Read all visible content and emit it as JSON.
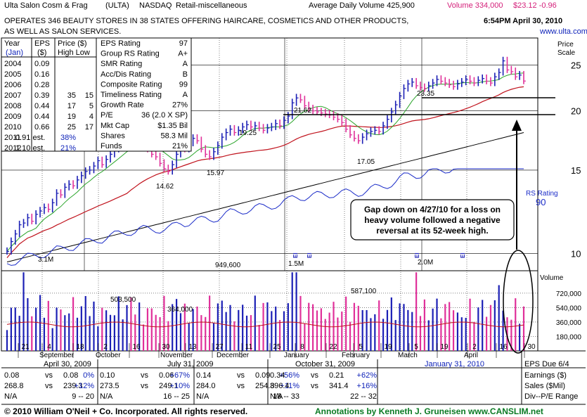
{
  "header": {
    "name": "Ulta Salon Cosm & Frag",
    "symbol": "(ULTA)",
    "exchange": "NASDAQ",
    "industry": "Retail-miscellaneous",
    "avg_volume": "Average Daily Volume 425,900",
    "volume": "Volume 334,000",
    "price": "$23.12 -0.96",
    "description_line1": "OPERATES 346 BEAUTY STORES IN 38 STATES OFFERING HAIRCARE,  COSMETICS AND OTHER PRODUCTS,",
    "description_line2": "AS WELL AS SALON SERVICES.",
    "timestamp": "6:54PM April 30, 2010",
    "url": "www.ulta.com"
  },
  "eps_table": {
    "headers": [
      [
        "Year",
        "(Jan)"
      ],
      [
        "EPS",
        "($)"
      ],
      [
        "Price ($)",
        "High Low"
      ]
    ],
    "rows": [
      {
        "year": "2004",
        "eps": "0.09",
        "high": "",
        "low": ""
      },
      {
        "year": "2005",
        "eps": "0.16",
        "high": "",
        "low": ""
      },
      {
        "year": "2006",
        "eps": "0.28",
        "high": "",
        "low": ""
      },
      {
        "year": "2007",
        "eps": "0.39",
        "high": "35",
        "low": "15"
      },
      {
        "year": "2008",
        "eps": "0.44",
        "high": "17",
        "low": "5"
      },
      {
        "year": "2009",
        "eps": "0.44",
        "high": "19",
        "low": "4"
      },
      {
        "year": "2010",
        "eps": "0.66",
        "high": "25",
        "low": "17"
      },
      {
        "year": "2011",
        "eps": "0.91 est.",
        "high": "38%",
        "low": ""
      },
      {
        "year": "2012",
        "eps": "1.10 est.",
        "high": "21%",
        "low": ""
      }
    ]
  },
  "ratings": [
    {
      "label": "EPS Rating",
      "value": "97"
    },
    {
      "label": "Group RS Rating",
      "value": "A+"
    },
    {
      "label": "SMR Rating",
      "value": "A"
    },
    {
      "label": "Acc/Dis Rating",
      "value": "B"
    },
    {
      "label": "Composite Rating",
      "value": "99"
    },
    {
      "label": "Timeliness Rating",
      "value": "A"
    },
    {
      "label": "Growth Rate",
      "value": "27%"
    },
    {
      "label": "P/E",
      "value": "36 (2.0 X SP)"
    },
    {
      "label": "Mkt Cap",
      "value": "$1.35 Bil"
    },
    {
      "label": "Shares",
      "value": "58.3 Mil"
    },
    {
      "label": "Funds",
      "value": "21%"
    }
  ],
  "annotation": {
    "line1": "Gap down on 4/27/10 for a loss on",
    "line2": "heavy volume followed a negative",
    "line3": "reversal at its 52-week high."
  },
  "rs_label": "RS Rating",
  "rs_value": "90",
  "price_scale_label": [
    "Price",
    "Scale"
  ],
  "volume_label": "Volume",
  "x_axis": {
    "day_ticks": [
      "21",
      "4",
      "18",
      "2",
      "16",
      "30",
      "13",
      "27",
      "11",
      "25",
      "8",
      "22",
      "5",
      "19",
      "5",
      "19",
      "2",
      "16",
      "30"
    ],
    "months": [
      "September",
      "October",
      "November",
      "December",
      "January",
      "February",
      "March",
      "April"
    ]
  },
  "quarters": [
    {
      "date": "April 30, 2009",
      "eps_cur": "0.08",
      "eps_prev": "0.08",
      "eps_chg": "0%",
      "sales_cur": "268.8",
      "sales_prev": "239.3",
      "sales_chg": "+12%",
      "pe_label": "N/A",
      "pe_range": "9 -- 20"
    },
    {
      "date": "July 31, 2009",
      "eps_cur": "0.10",
      "eps_prev": "0.06",
      "eps_chg": "+67%",
      "sales_cur": "273.5",
      "sales_prev": "249.1",
      "sales_chg": "+10%",
      "pe_label": "N/A",
      "pe_range": "16 -- 25"
    },
    {
      "date": "October 31, 2009",
      "eps_cur": "0.14",
      "eps_prev": "0.09",
      "eps_chg": "+56%",
      "sales_cur": "284.0",
      "sales_prev": "254.8",
      "sales_chg": "+11%",
      "pe_label": "N/A",
      "pe_range": "18 -- 33"
    },
    {
      "date": "January 31, 2010",
      "eps_cur": "0.34",
      "eps_prev": "0.21",
      "eps_chg": "+62%",
      "sales_cur": "396.4",
      "sales_prev": "341.4",
      "sales_chg": "+16%",
      "pe_label": "N/A",
      "pe_range": "22 -- 32"
    }
  ],
  "vs_label": "vs",
  "footer_right": {
    "due": "EPS Due 6/4",
    "earnings": "Earnings ($)",
    "sales": "Sales ($Mil)",
    "pe": "Div--P/E Range"
  },
  "footer": {
    "copyright": "© 2010 William O'Neil + Co. Incorporated. All rights reserved.",
    "annotations": "Annotations by Kenneth J. Gruneisen www.CANSLIM.net"
  },
  "colors": {
    "up": "#1b1fb5",
    "down": "#e0309a",
    "ma50": "#2aa52a",
    "ma200": "#c0121c",
    "rs": "#1a2bc8",
    "grid": "#000000",
    "annot_text": "#000000",
    "footer_green": "#0a7a23",
    "blue_text": "#0b1fb8",
    "pink_text": "#d4207a"
  },
  "chart_data": {
    "type": "bar",
    "description_of_type": "ohlc",
    "price_axis": {
      "ticks": [
        10,
        15,
        20,
        25
      ],
      "log_scale": true,
      "ylim": [
        9.2,
        28.5
      ]
    },
    "volume_axis": {
      "ticks": [
        "180000",
        "360000",
        "540000",
        "720000"
      ],
      "ylim": [
        0,
        1000000
      ]
    },
    "price_annotations": [
      "21.62",
      "19.25",
      "23.35",
      "17.05",
      "15.97",
      "14.62"
    ],
    "volume_annotations": [
      "3.1M",
      "503,500",
      "364,000",
      "949,600",
      "1.5M",
      "587,100",
      "2.0M"
    ],
    "horizontal_levels": [
      21.62,
      23.35
    ],
    "series": [
      {
        "name": "Price",
        "closes": [
          10.1,
          10.6,
          11.0,
          11.5,
          11.6,
          11.9,
          11.7,
          12.1,
          12.3,
          12.5,
          12.4,
          12.8,
          13.4,
          13.3,
          13.8,
          14.0,
          13.9,
          14.3,
          14.6,
          14.9,
          15.0,
          15.3,
          15.7,
          15.4,
          15.8,
          16.2,
          16.6,
          16.9,
          17.1,
          17.5,
          17.2,
          16.9,
          17.4,
          17.1,
          16.6,
          16.2,
          16.0,
          15.5,
          15.1,
          14.9,
          15.4,
          16.2,
          16.8,
          16.6,
          17.1,
          17.5,
          17.3,
          16.6,
          16.2,
          16.0,
          16.4,
          16.9,
          17.6,
          18.0,
          18.3,
          18.0,
          18.2,
          18.5,
          18.7,
          18.5,
          18.6,
          18.4,
          18.2,
          18.4,
          18.5,
          18.8,
          18.6,
          19.1,
          19.5,
          20.8,
          21.3,
          21.1,
          20.5,
          20.2,
          20.0,
          19.9,
          19.8,
          19.7,
          19.6,
          19.4,
          19.2,
          18.9,
          18.3,
          17.8,
          17.5,
          17.3,
          17.6,
          17.9,
          18.1,
          18.2,
          18.1,
          18.6,
          19.2,
          19.9,
          20.6,
          21.5,
          22.3,
          22.8,
          23.0,
          22.6,
          22.4,
          22.3,
          22.6,
          22.9,
          23.3,
          23.1,
          22.9,
          22.7,
          22.5,
          22.8,
          23.0,
          23.3,
          23.1,
          22.9,
          23.2,
          23.4,
          23.1,
          22.9,
          23.6,
          24.1,
          25.5,
          24.4,
          24.2,
          23.6,
          23.8,
          23.12
        ]
      },
      {
        "name": "50-day MA"
      },
      {
        "name": "200-day MA"
      },
      {
        "name": "RS line"
      }
    ]
  }
}
